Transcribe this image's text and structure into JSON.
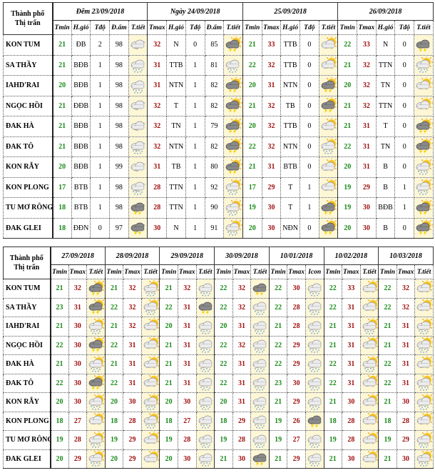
{
  "city_header": [
    "Thành phố",
    "Thị trấn"
  ],
  "colors": {
    "tmin": "#1a8a1a",
    "tmax": "#a01010",
    "icon_bg": "#fdf7d6"
  },
  "top": {
    "groups": [
      {
        "date": "Đêm 23/09/2018",
        "subheaders": [
          "Tmin",
          "H.gió",
          "Tđộ",
          "Đ.ẩm",
          "T.tiết"
        ]
      },
      {
        "date": "Ngày 24/09/2018",
        "subheaders": [
          "Tmax",
          "H.gió",
          "Tđộ",
          "Đ.ẩm",
          "T.tiết"
        ]
      },
      {
        "date": "25/09/2018",
        "subheaders": [
          "Tmin",
          "Tmax",
          "H.gió",
          "Tđộ",
          "T.tiết"
        ]
      },
      {
        "date": "26/09/2018",
        "subheaders": [
          "Tmin",
          "Tmax",
          "H.gió",
          "Tđộ",
          "T.tiết"
        ]
      }
    ],
    "rows": [
      {
        "city": "KON TUM",
        "groups": [
          [
            "21",
            "ĐB",
            "2",
            "98",
            "moon-cloud"
          ],
          [
            "32",
            "N",
            "0",
            "85",
            "sun-storm"
          ],
          [
            "21",
            "33",
            "TTB",
            "0",
            "sun-cloud"
          ],
          [
            "22",
            "33",
            "N",
            "0",
            "storm"
          ]
        ]
      },
      {
        "city": "SA THẦY",
        "groups": [
          [
            "21",
            "BĐB",
            "1",
            "98",
            "cloud-rain"
          ],
          [
            "31",
            "TTB",
            "1",
            "81",
            "cloud-rain"
          ],
          [
            "22",
            "32",
            "TTB",
            "0",
            "sun-cloud"
          ],
          [
            "21",
            "32",
            "TTN",
            "0",
            "sun-cloud-rain"
          ]
        ]
      },
      {
        "city": "IAHD'RAI",
        "groups": [
          [
            "20",
            "BĐB",
            "1",
            "98",
            "cloud-rain"
          ],
          [
            "31",
            "NTN",
            "1",
            "82",
            "sun-storm"
          ],
          [
            "20",
            "31",
            "NTN",
            "0",
            "sun-storm"
          ],
          [
            "20",
            "32",
            "TN",
            "0",
            "sun-cloud"
          ]
        ]
      },
      {
        "city": "NGỌC HỒI",
        "groups": [
          [
            "21",
            "ĐĐB",
            "1",
            "98",
            "moon-cloud"
          ],
          [
            "32",
            "T",
            "1",
            "82",
            "sun-storm"
          ],
          [
            "21",
            "32",
            "TB",
            "0",
            "sun-storm"
          ],
          [
            "21",
            "32",
            "TTN",
            "0",
            "sun-cloud"
          ]
        ]
      },
      {
        "city": "ĐAK HÀ",
        "groups": [
          [
            "21",
            "BĐB",
            "1",
            "98",
            "moon-cloud"
          ],
          [
            "32",
            "TN",
            "1",
            "79",
            "sun-storm"
          ],
          [
            "20",
            "32",
            "TTB",
            "0",
            "sun-cloud"
          ],
          [
            "21",
            "31",
            "T",
            "0",
            "sun-storm"
          ]
        ]
      },
      {
        "city": "ĐAK TÔ",
        "groups": [
          [
            "21",
            "BĐB",
            "1",
            "98",
            "moon-cloud-rain"
          ],
          [
            "32",
            "NTN",
            "1",
            "82",
            "sun-storm"
          ],
          [
            "22",
            "32",
            "NTN",
            "0",
            "sun-cloud-rain"
          ],
          [
            "22",
            "31",
            "TN",
            "0",
            "sun-storm"
          ]
        ]
      },
      {
        "city": "KON RẪY",
        "groups": [
          [
            "20",
            "BĐB",
            "1",
            "99",
            "moon-cloud"
          ],
          [
            "31",
            "TB",
            "1",
            "80",
            "sun-storm"
          ],
          [
            "21",
            "31",
            "BTB",
            "0",
            "sun-cloud"
          ],
          [
            "20",
            "31",
            "B",
            "0",
            "sun-cloud-rain"
          ]
        ]
      },
      {
        "city": "KON PLONG",
        "groups": [
          [
            "17",
            "BTB",
            "1",
            "98",
            "moon-cloud-rain"
          ],
          [
            "28",
            "TTN",
            "1",
            "92",
            "sun-cloud-rain"
          ],
          [
            "17",
            "29",
            "T",
            "1",
            "sun-cloud"
          ],
          [
            "19",
            "29",
            "B",
            "1",
            "sun-cloud-rain"
          ]
        ]
      },
      {
        "city": "TU MƠ RÔNG",
        "groups": [
          [
            "18",
            "BTB",
            "1",
            "98",
            "moon-storm"
          ],
          [
            "28",
            "TTN",
            "1",
            "90",
            "sun-cloud-rain"
          ],
          [
            "19",
            "30",
            "T",
            "1",
            "sun-storm"
          ],
          [
            "19",
            "30",
            "BĐB",
            "1",
            "sun-storm"
          ]
        ]
      },
      {
        "city": "ĐAK GLEI",
        "groups": [
          [
            "18",
            "ĐĐN",
            "0",
            "97",
            "moon-storm"
          ],
          [
            "30",
            "N",
            "1",
            "91",
            "sun-cloud-rain"
          ],
          [
            "20",
            "30",
            "NĐN",
            "0",
            "sun-storm"
          ],
          [
            "20",
            "30",
            "B",
            "0",
            "sun-storm"
          ]
        ]
      }
    ]
  },
  "bottom": {
    "groups": [
      {
        "date": "27/09/2018",
        "subheaders": [
          "Tmin",
          "Tmax",
          "T.tiết"
        ]
      },
      {
        "date": "28/09/2018",
        "subheaders": [
          "Tmin",
          "Tmax",
          "T.tiết"
        ]
      },
      {
        "date": "29/09/2018",
        "subheaders": [
          "Tmin",
          "Tmax",
          "T.tiết"
        ]
      },
      {
        "date": "30/09/2018",
        "subheaders": [
          "Tmin",
          "Tmax",
          "T.tiết"
        ]
      },
      {
        "date": "10/01/2018",
        "subheaders": [
          "Tmin",
          "Tmax",
          "Icon"
        ]
      },
      {
        "date": "10/02/2018",
        "subheaders": [
          "Tmin",
          "Tmax",
          "T.tiết"
        ]
      },
      {
        "date": "10/03/2018",
        "subheaders": [
          "Tmin",
          "Tmax",
          "T.tiết"
        ]
      }
    ],
    "rows": [
      {
        "city": "KON TUM",
        "groups": [
          [
            "21",
            "32",
            "sun-storm"
          ],
          [
            "21",
            "32",
            "sun-cloud-rain"
          ],
          [
            "21",
            "32",
            "cloud-rain"
          ],
          [
            "22",
            "32",
            "storm"
          ],
          [
            "22",
            "30",
            "cloud-rain"
          ],
          [
            "22",
            "33",
            "sun-cloud"
          ],
          [
            "22",
            "32",
            "sun-cloud"
          ]
        ]
      },
      {
        "city": "SA THẦY",
        "groups": [
          [
            "23",
            "31",
            "sun-storm"
          ],
          [
            "22",
            "32",
            "sun-cloud-rain"
          ],
          [
            "22",
            "31",
            "storm"
          ],
          [
            "22",
            "32",
            "cloud-rain"
          ],
          [
            "22",
            "28",
            "cloud-rain"
          ],
          [
            "22",
            "31",
            "sun-cloud"
          ],
          [
            "22",
            "32",
            "sun-cloud"
          ]
        ]
      },
      {
        "city": "IAHD'RAI",
        "groups": [
          [
            "21",
            "30",
            "sun-cloud-rain"
          ],
          [
            "21",
            "32",
            "sun-cloud"
          ],
          [
            "20",
            "31",
            "cloud-rain"
          ],
          [
            "20",
            "31",
            "cloud-rain"
          ],
          [
            "21",
            "28",
            "cloud-rain"
          ],
          [
            "21",
            "31",
            "sun-cloud-rain"
          ],
          [
            "21",
            "31",
            "sun-cloud-rain"
          ]
        ]
      },
      {
        "city": "NGỌC HỒI",
        "groups": [
          [
            "22",
            "30",
            "sun-storm"
          ],
          [
            "22",
            "31",
            "sun-cloud"
          ],
          [
            "21",
            "31",
            "cloud-rain"
          ],
          [
            "22",
            "32",
            "cloud-rain"
          ],
          [
            "22",
            "29",
            "cloud-rain"
          ],
          [
            "21",
            "31",
            "sun-cloud"
          ],
          [
            "21",
            "31",
            "sun-cloud-rain"
          ]
        ]
      },
      {
        "city": "ĐAK HÀ",
        "groups": [
          [
            "21",
            "30",
            "sun-cloud-rain"
          ],
          [
            "21",
            "31",
            "sun-cloud"
          ],
          [
            "21",
            "31",
            "cloud-rain"
          ],
          [
            "22",
            "31",
            "cloud-rain"
          ],
          [
            "22",
            "29",
            "cloud-rain"
          ],
          [
            "22",
            "31",
            "sun-cloud-rain"
          ],
          [
            "22",
            "31",
            "sun-cloud"
          ]
        ]
      },
      {
        "city": "ĐAK TÔ",
        "groups": [
          [
            "22",
            "30",
            "sun-storm"
          ],
          [
            "22",
            "31",
            "sun-cloud"
          ],
          [
            "21",
            "31",
            "cloud-rain"
          ],
          [
            "22",
            "31",
            "cloud-rain"
          ],
          [
            "23",
            "30",
            "cloud-rain"
          ],
          [
            "22",
            "31",
            "sun-cloud"
          ],
          [
            "22",
            "31",
            "sun-cloud-rain"
          ]
        ]
      },
      {
        "city": "KON RẪY",
        "groups": [
          [
            "20",
            "30",
            "sun-cloud-rain"
          ],
          [
            "20",
            "30",
            "sun-cloud-rain"
          ],
          [
            "20",
            "30",
            "cloud-rain"
          ],
          [
            "20",
            "31",
            "cloud-rain"
          ],
          [
            "21",
            "29",
            "cloud-rain"
          ],
          [
            "21",
            "30",
            "sun-cloud"
          ],
          [
            "21",
            "30",
            "sun-cloud-rain"
          ]
        ]
      },
      {
        "city": "KON PLONG",
        "groups": [
          [
            "18",
            "27",
            "sun-cloud"
          ],
          [
            "18",
            "28",
            "sun-cloud-rain"
          ],
          [
            "18",
            "27",
            "cloud-rain"
          ],
          [
            "18",
            "29",
            "cloud-rain"
          ],
          [
            "19",
            "26",
            "storm"
          ],
          [
            "18",
            "28",
            "sun-cloud"
          ],
          [
            "18",
            "28",
            "sun-cloud"
          ]
        ]
      },
      {
        "city": "TU MƠ RÔNG",
        "groups": [
          [
            "19",
            "28",
            "sun-cloud-rain"
          ],
          [
            "19",
            "29",
            "sun-cloud"
          ],
          [
            "19",
            "28",
            "cloud-rain"
          ],
          [
            "19",
            "28",
            "cloud-rain"
          ],
          [
            "19",
            "27",
            "cloud-rain"
          ],
          [
            "19",
            "28",
            "sun-cloud"
          ],
          [
            "19",
            "29",
            "sun-cloud-rain"
          ]
        ]
      },
      {
        "city": "ĐAK GLEI",
        "groups": [
          [
            "20",
            "29",
            "sun-cloud-rain"
          ],
          [
            "20",
            "29",
            "sun-cloud"
          ],
          [
            "20",
            "30",
            "cloud-rain"
          ],
          [
            "21",
            "30",
            "storm"
          ],
          [
            "21",
            "29",
            "cloud-rain"
          ],
          [
            "21",
            "30",
            "sun-cloud"
          ],
          [
            "21",
            "30",
            "sun-cloud-rain"
          ]
        ]
      }
    ]
  }
}
